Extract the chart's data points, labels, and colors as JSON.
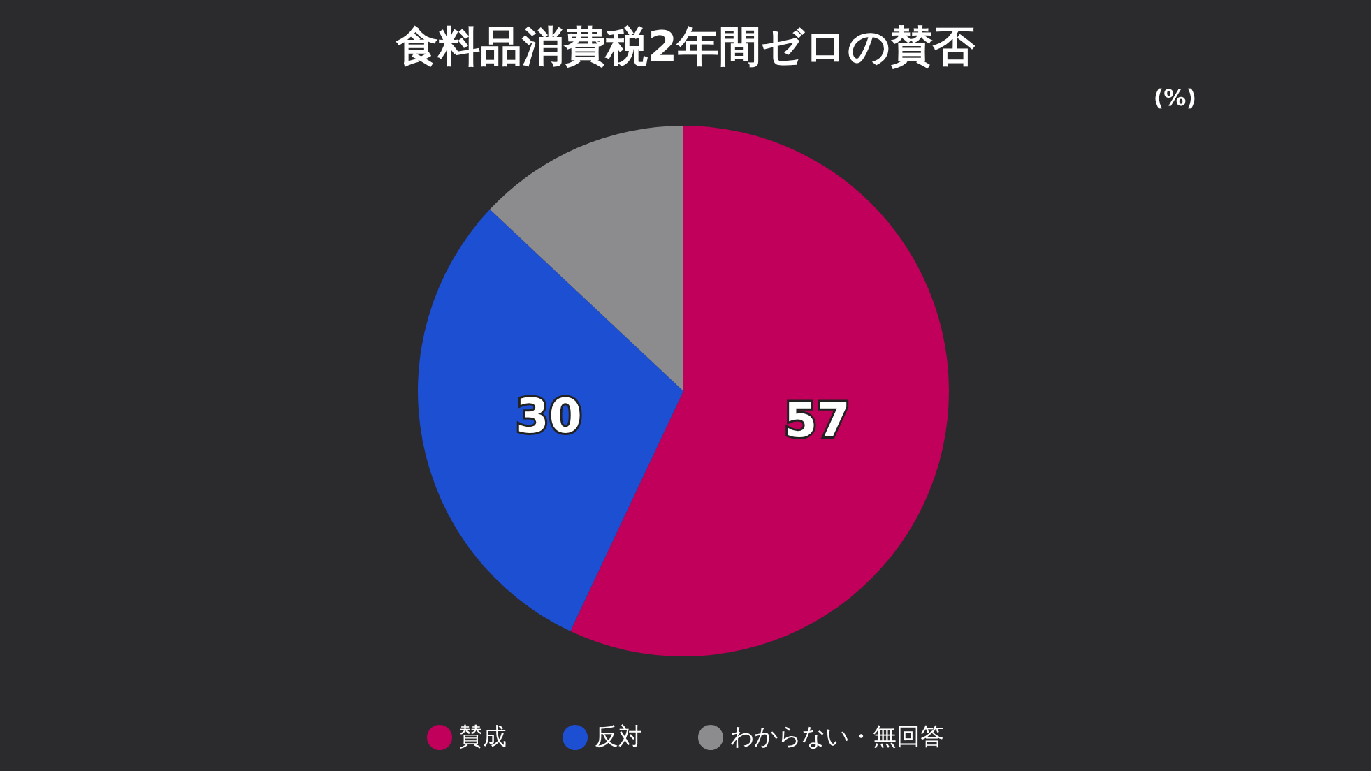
{
  "chart_data": {
    "type": "pie",
    "title": "食料品消費税2年間ゼロの賛否",
    "categories": [
      "賛成",
      "反対",
      "わからない・無回答"
    ],
    "values": [
      57,
      30,
      13
    ],
    "colors": [
      "#c0005a",
      "#1d4fd2",
      "#8c8c8e"
    ],
    "value_labels": [
      "57",
      "30",
      null
    ],
    "annotations": [
      "(%)"
    ],
    "legend": "bottom"
  }
}
